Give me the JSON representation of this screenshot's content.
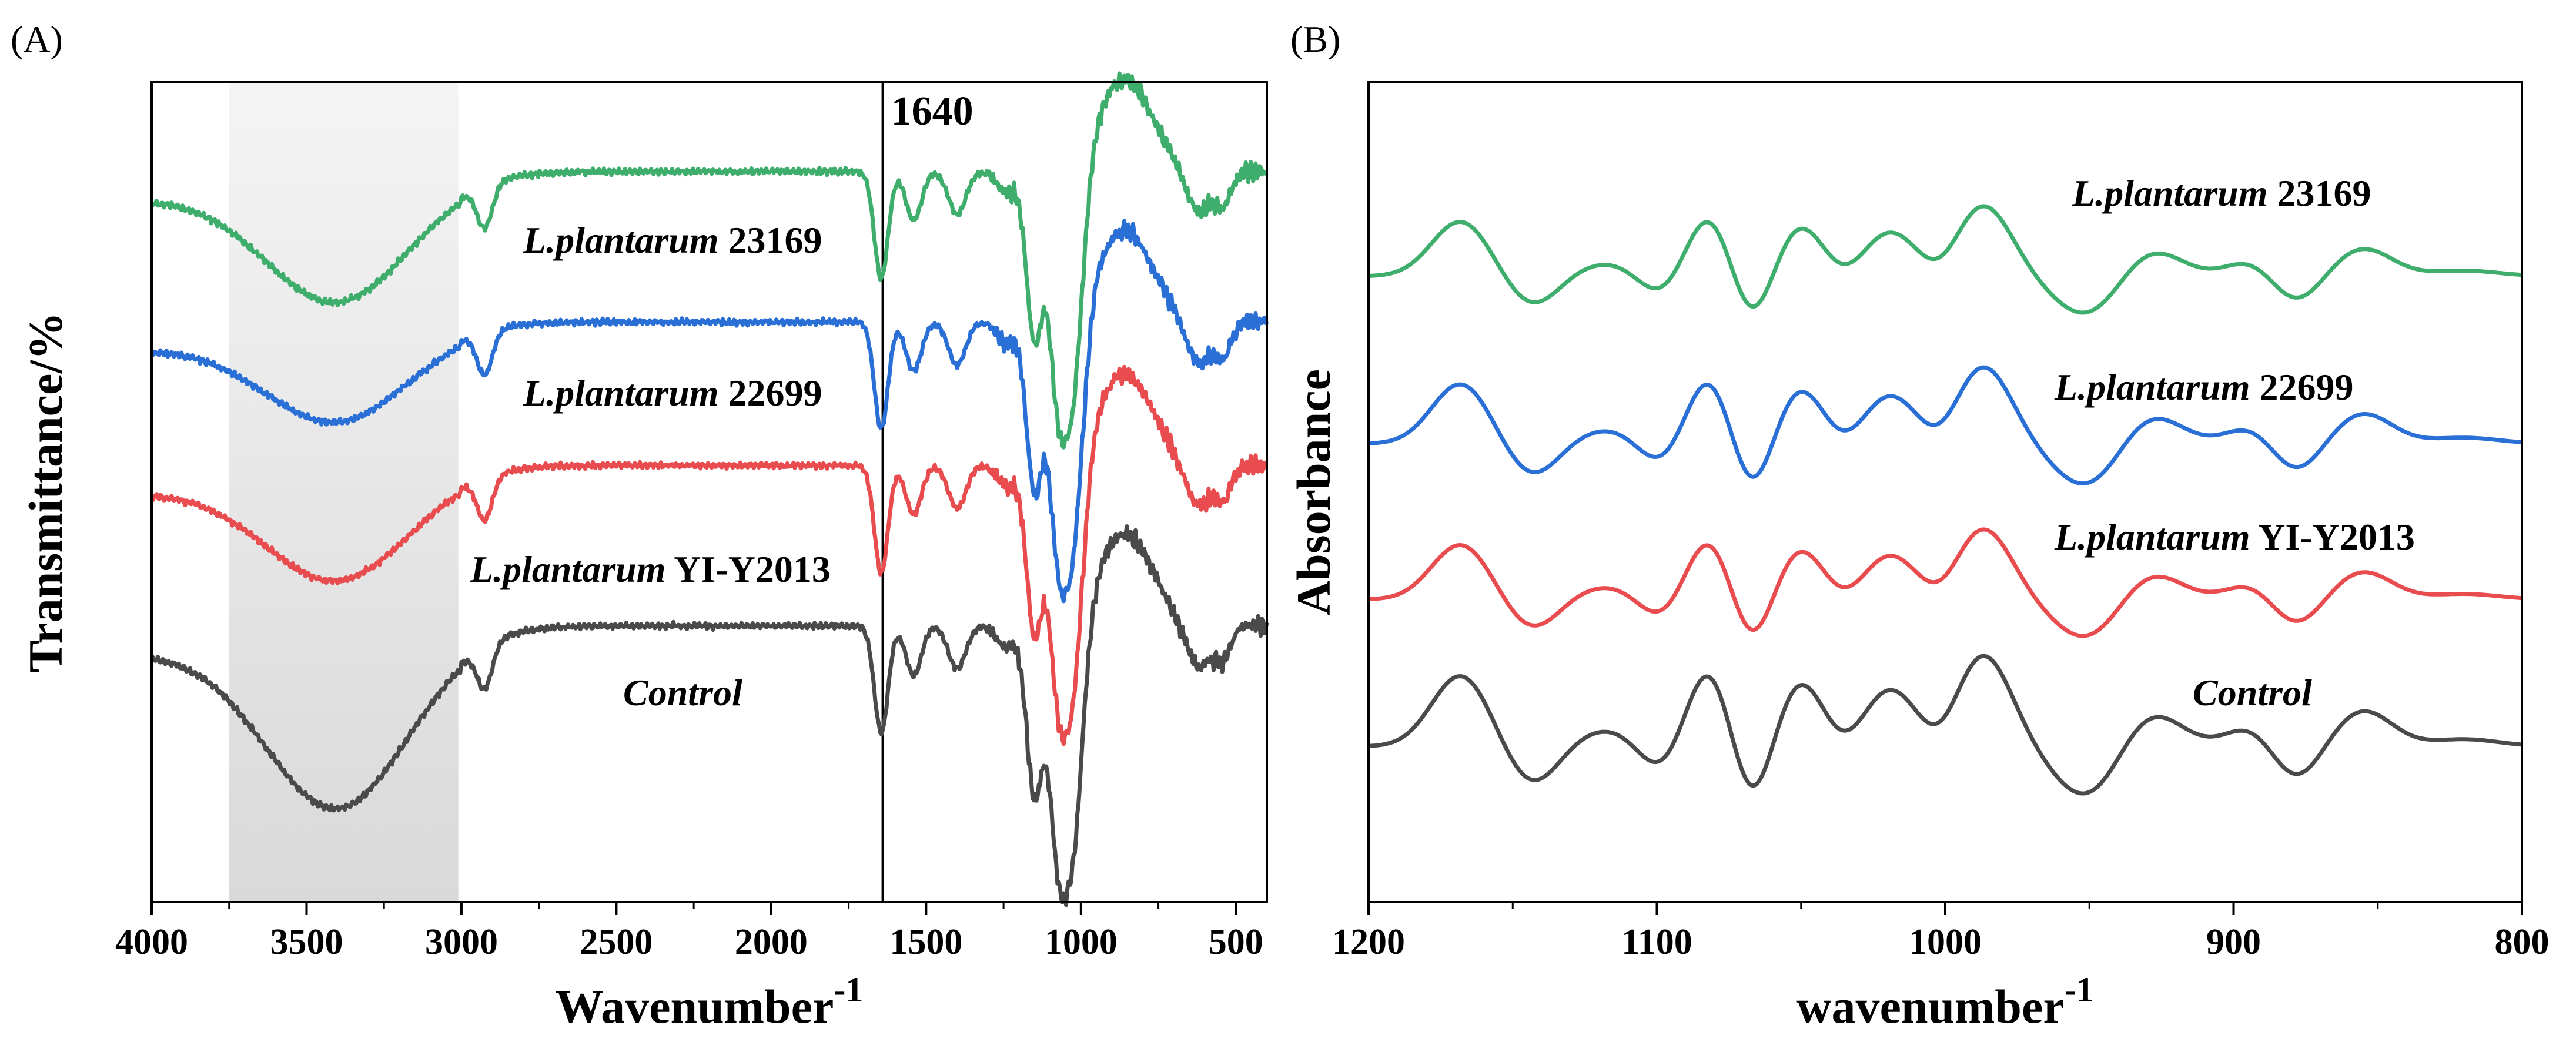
{
  "panels": {
    "a": {
      "label": "(A)"
    },
    "b": {
      "label": "(B)"
    }
  },
  "colors": {
    "green": "#3fae6c",
    "blue": "#2a6fd6",
    "red": "#e84c4f",
    "gray": "#4a4a4a",
    "shade": "#d9d9d9"
  },
  "chart_data": [
    {
      "id": "A",
      "type": "line",
      "title": "",
      "xlabel": "Wavenumber",
      "xlabel_sup": "-1",
      "ylabel": "Transmittance/%",
      "xlim": [
        4000,
        400
      ],
      "xticks": [
        4000,
        3500,
        3000,
        2500,
        2000,
        1500,
        1000,
        500
      ],
      "annotation": {
        "text": "1640",
        "x": 1640
      },
      "shaded_region": [
        3750,
        3010
      ],
      "series": [
        {
          "name": "L.plantarum 23169",
          "name_italic": "L.plantarum",
          "name_rest": " 23169",
          "color": "#3fae6c",
          "offset": 3.0
        },
        {
          "name": "L.plantarum 22699",
          "name_italic": "L.plantarum",
          "name_rest": " 22699",
          "color": "#2a6fd6",
          "offset": 2.0
        },
        {
          "name": "L.plantarum YI-Y2013",
          "name_italic": "L.plantarum",
          "name_rest": " YI-Y2013",
          "color": "#e84c4f",
          "offset": 1.0
        },
        {
          "name": "Control",
          "name_italic": "Control",
          "name_rest": "",
          "color": "#4a4a4a",
          "offset": 0.0
        }
      ]
    },
    {
      "id": "B",
      "type": "line",
      "title": "",
      "xlabel": "wavenumber",
      "xlabel_sup": "-1",
      "ylabel": "Absorbance",
      "xlim": [
        1200,
        800
      ],
      "xticks": [
        1200,
        1100,
        1000,
        900,
        800
      ],
      "series": [
        {
          "name": "L.plantarum 23169",
          "name_italic": "L.plantarum",
          "name_rest": " 23169",
          "color": "#3fae6c",
          "offset": 3.0
        },
        {
          "name": "L.plantarum 22699",
          "name_italic": "L.plantarum",
          "name_rest": " 22699",
          "color": "#2a6fd6",
          "offset": 2.0
        },
        {
          "name": "L.plantarum YI-Y2013",
          "name_italic": "L.plantarum",
          "name_rest": " YI-Y2013",
          "color": "#e84c4f",
          "offset": 1.0
        },
        {
          "name": "Control",
          "name_italic": "Control",
          "name_rest": "",
          "color": "#4a4a4a",
          "offset": 0.0
        }
      ]
    }
  ]
}
